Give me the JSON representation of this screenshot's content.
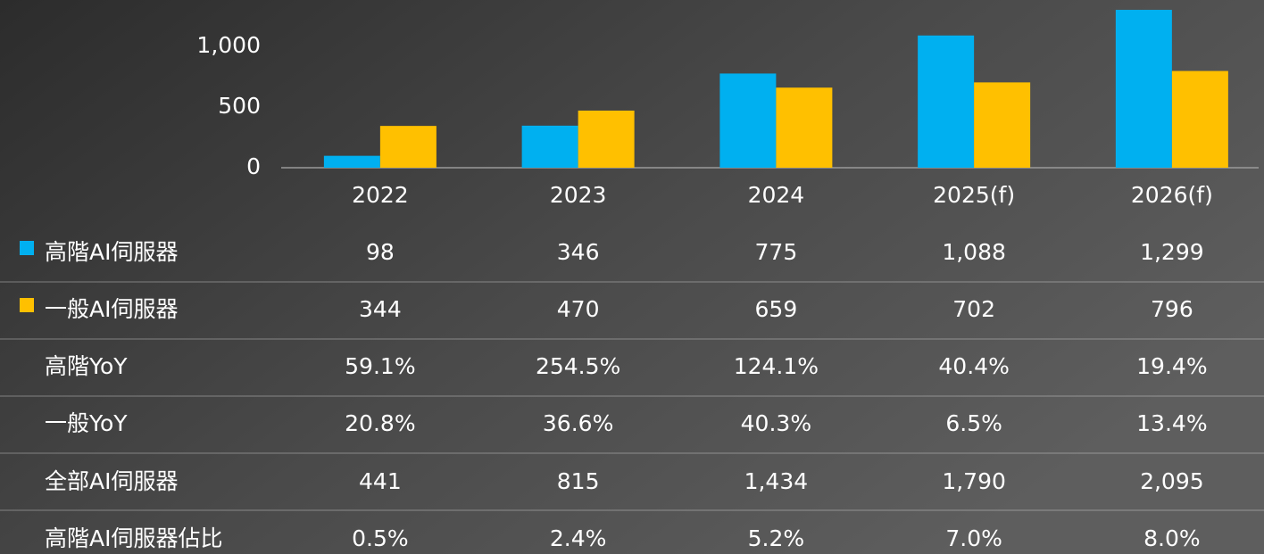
{
  "chart_data": {
    "type": "bar",
    "categories": [
      "2022",
      "2023",
      "2024",
      "2025(f)",
      "2026(f)"
    ],
    "series": [
      {
        "name": "高階AI伺服器",
        "color": "#00b0f0",
        "values": [
          98,
          346,
          775,
          1088,
          1299
        ],
        "value_labels": [
          "98",
          "346",
          "775",
          "1,088",
          "1,299"
        ]
      },
      {
        "name": "一般AI伺服器",
        "color": "#ffc000",
        "values": [
          344,
          470,
          659,
          702,
          796
        ],
        "value_labels": [
          "344",
          "470",
          "659",
          "702",
          "796"
        ]
      }
    ],
    "ylim": [
      0,
      1380
    ],
    "yticks": [
      0,
      500,
      {
        "value": 1000,
        "label": "1,000"
      }
    ],
    "grid": false,
    "table_rows": [
      {
        "name": "高階YoY",
        "cells": [
          "59.1%",
          "254.5%",
          "124.1%",
          "40.4%",
          "19.4%"
        ]
      },
      {
        "name": "一般YoY",
        "cells": [
          "20.8%",
          "36.6%",
          "40.3%",
          "6.5%",
          "13.4%"
        ]
      },
      {
        "name": "全部AI伺服器",
        "cells": [
          "441",
          "815",
          "1,434",
          "1,790",
          "2,095"
        ]
      },
      {
        "name": "高階AI伺服器佔比",
        "cells": [
          "0.5%",
          "2.4%",
          "5.2%",
          "7.0%",
          "8.0%"
        ]
      }
    ]
  }
}
